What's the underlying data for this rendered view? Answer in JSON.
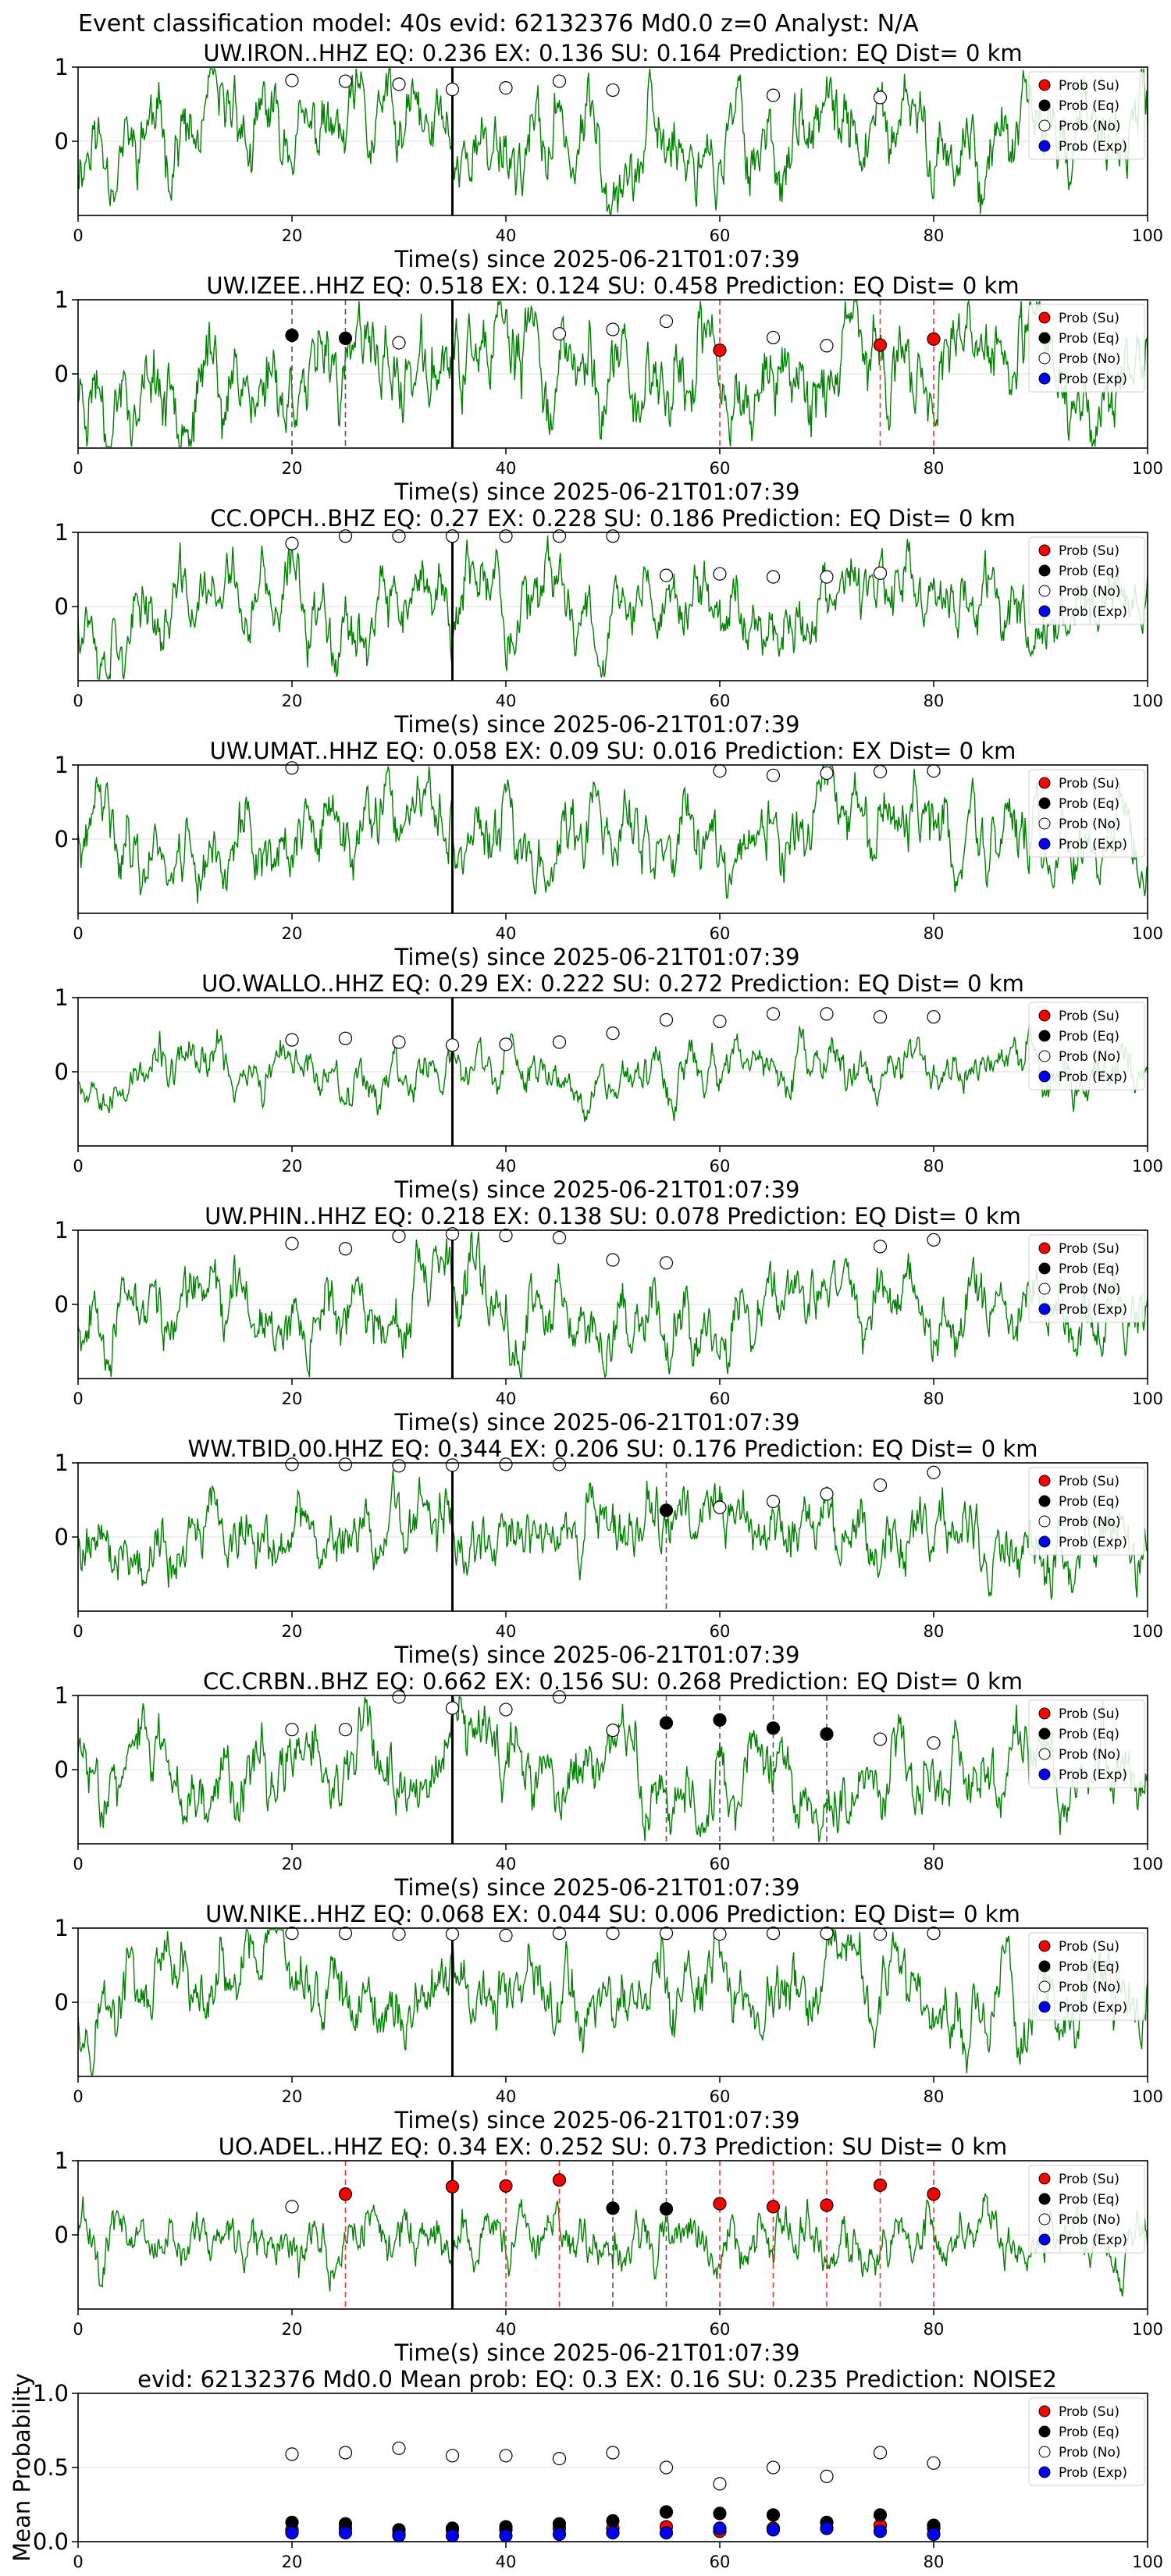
{
  "figure_title": "Event classification model: 40s evid: 62132376 Md0.0 z=0 Analyst: N/A",
  "legend_labels": [
    "Prob (Su)",
    "Prob (Eq)",
    "Prob (No)",
    "Prob (Exp)"
  ],
  "colors": {
    "su": "#ff0000",
    "eq": "#000000",
    "no": "#ffffff",
    "exp": "#0000ff",
    "trace": "#008000",
    "grid": "#dddddd"
  },
  "chart_data": [
    {
      "type": "line",
      "station": "UW.IRON..HHZ",
      "title": "UW.IRON..HHZ   EQ: 0.236  EX: 0.136  SU: 0.164   Prediction: EQ    Dist= 0 km",
      "xlabel": "Time(s) since 2025-06-21T01:07:39",
      "xlim": [
        0,
        100
      ],
      "ylim": [
        -1,
        1
      ],
      "xticks": [
        0,
        20,
        40,
        60,
        80,
        100
      ],
      "yticks": [
        0,
        1
      ],
      "ytick_labels": [
        "0",
        "1"
      ],
      "pick_time": 35,
      "waveform": {
        "seed": 11,
        "amplitude": 0.55
      },
      "dashed_lines": [],
      "probabilities": {
        "x": [
          20,
          25,
          30,
          35,
          40,
          45,
          50,
          55,
          60,
          65,
          70,
          75,
          80
        ],
        "no": [
          0.82,
          0.81,
          0.77,
          0.7,
          0.72,
          0.81,
          0.69,
          null,
          null,
          0.62,
          null,
          0.59,
          null
        ],
        "eq": [],
        "su": [],
        "exp": []
      }
    },
    {
      "type": "line",
      "station": "UW.IZEE..HHZ",
      "title": "UW.IZEE..HHZ   EQ: 0.518  EX: 0.124  SU: 0.458   Prediction: EQ    Dist= 0 km",
      "xlabel": "Time(s) since 2025-06-21T01:07:39",
      "xlim": [
        0,
        100
      ],
      "ylim": [
        -1,
        1
      ],
      "xticks": [
        0,
        20,
        40,
        60,
        80,
        100
      ],
      "yticks": [
        0,
        1
      ],
      "ytick_labels": [
        "0",
        "1"
      ],
      "pick_time": 35,
      "waveform": {
        "seed": 23,
        "amplitude": 0.6
      },
      "dashed_lines": [
        {
          "x": 20,
          "color": "#555555"
        },
        {
          "x": 25,
          "color": "#555555"
        },
        {
          "x": 60,
          "color": "#ff3030"
        },
        {
          "x": 75,
          "color": "#ff3030"
        },
        {
          "x": 80,
          "color": "#ff3030"
        }
      ],
      "probabilities": {
        "x": [
          20,
          25,
          30,
          35,
          40,
          45,
          50,
          55,
          60,
          65,
          70,
          75,
          80
        ],
        "no": [
          null,
          null,
          0.42,
          null,
          null,
          0.54,
          0.6,
          0.71,
          null,
          0.49,
          0.38,
          null,
          null
        ],
        "eq": [
          0.52,
          0.48,
          null,
          null,
          null,
          null,
          null,
          null,
          null,
          null,
          null,
          null,
          null
        ],
        "su": [
          null,
          null,
          null,
          null,
          null,
          null,
          null,
          null,
          0.32,
          null,
          null,
          0.39,
          0.47
        ],
        "exp": []
      }
    },
    {
      "type": "line",
      "station": "CC.OPCH..BHZ",
      "title": "CC.OPCH..BHZ   EQ: 0.27  EX: 0.228  SU: 0.186   Prediction: EQ    Dist= 0 km",
      "xlabel": "Time(s) since 2025-06-21T01:07:39",
      "xlim": [
        0,
        100
      ],
      "ylim": [
        -1,
        1
      ],
      "xticks": [
        0,
        20,
        40,
        60,
        80,
        100
      ],
      "yticks": [
        0,
        1
      ],
      "ytick_labels": [
        "0",
        "1"
      ],
      "pick_time": 35,
      "waveform": {
        "seed": 37,
        "amplitude": 0.5
      },
      "dashed_lines": [],
      "probabilities": {
        "x": [
          20,
          25,
          30,
          35,
          40,
          45,
          50,
          55,
          60,
          65,
          70,
          75,
          80
        ],
        "no": [
          0.85,
          0.95,
          0.95,
          0.95,
          0.95,
          0.95,
          0.95,
          0.42,
          0.44,
          0.4,
          0.4,
          0.45,
          null
        ],
        "eq": [],
        "su": [],
        "exp": []
      }
    },
    {
      "type": "line",
      "station": "UW.UMAT..HHZ",
      "title": "UW.UMAT..HHZ   EQ: 0.058  EX: 0.09  SU: 0.016   Prediction: EX    Dist= 0 km",
      "xlabel": "Time(s) since 2025-06-21T01:07:39",
      "xlim": [
        0,
        100
      ],
      "ylim": [
        -1,
        1
      ],
      "xticks": [
        0,
        20,
        40,
        60,
        80,
        100
      ],
      "yticks": [
        0,
        1
      ],
      "ytick_labels": [
        "0",
        "1"
      ],
      "pick_time": 35,
      "waveform": {
        "seed": 41,
        "amplitude": 0.5
      },
      "dashed_lines": [],
      "probabilities": {
        "x": [
          20,
          25,
          30,
          35,
          40,
          45,
          50,
          55,
          60,
          65,
          70,
          75,
          80
        ],
        "no": [
          0.96,
          null,
          null,
          null,
          null,
          null,
          null,
          null,
          0.92,
          0.86,
          0.89,
          0.91,
          0.92
        ],
        "eq": [],
        "su": [],
        "exp": []
      }
    },
    {
      "type": "line",
      "station": "UO.WALLO..HHZ",
      "title": "UO.WALLO..HHZ   EQ: 0.29  EX: 0.222  SU: 0.272   Prediction: EQ    Dist= 0 km",
      "xlabel": "Time(s) since 2025-06-21T01:07:39",
      "xlim": [
        0,
        100
      ],
      "ylim": [
        -1,
        1
      ],
      "xticks": [
        0,
        20,
        40,
        60,
        80,
        100
      ],
      "yticks": [
        0,
        1
      ],
      "ytick_labels": [
        "0",
        "1"
      ],
      "pick_time": 35,
      "waveform": {
        "seed": 53,
        "amplitude": 0.3
      },
      "dashed_lines": [],
      "probabilities": {
        "x": [
          20,
          25,
          30,
          35,
          40,
          45,
          50,
          55,
          60,
          65,
          70,
          75,
          80
        ],
        "no": [
          0.43,
          0.45,
          0.4,
          0.36,
          0.37,
          0.4,
          0.52,
          0.7,
          0.68,
          0.78,
          0.78,
          0.74,
          0.74
        ],
        "eq": [],
        "su": [],
        "exp": []
      }
    },
    {
      "type": "line",
      "station": "UW.PHIN..HHZ",
      "title": "UW.PHIN..HHZ   EQ: 0.218  EX: 0.138  SU: 0.078   Prediction: EQ    Dist= 0 km",
      "xlabel": "Time(s) since 2025-06-21T01:07:39",
      "xlim": [
        0,
        100
      ],
      "ylim": [
        -1,
        1
      ],
      "xticks": [
        0,
        20,
        40,
        60,
        80,
        100
      ],
      "yticks": [
        0,
        1
      ],
      "ytick_labels": [
        "0",
        "1"
      ],
      "pick_time": 35,
      "waveform": {
        "seed": 67,
        "amplitude": 0.45
      },
      "dashed_lines": [],
      "probabilities": {
        "x": [
          20,
          25,
          30,
          35,
          40,
          45,
          50,
          55,
          60,
          65,
          70,
          75,
          80
        ],
        "no": [
          0.82,
          0.75,
          0.92,
          0.95,
          0.93,
          0.9,
          0.6,
          0.56,
          null,
          null,
          null,
          0.78,
          0.87
        ],
        "eq": [],
        "su": [],
        "exp": []
      }
    },
    {
      "type": "line",
      "station": "WW.TBID.00.HHZ",
      "title": "WW.TBID.00.HHZ   EQ: 0.344  EX: 0.206  SU: 0.176   Prediction: EQ    Dist= 0 km",
      "xlabel": "Time(s) since 2025-06-21T01:07:39",
      "xlim": [
        0,
        100
      ],
      "ylim": [
        -1,
        1
      ],
      "xticks": [
        0,
        20,
        40,
        60,
        80,
        100
      ],
      "yticks": [
        0,
        1
      ],
      "ytick_labels": [
        "0",
        "1"
      ],
      "pick_time": 35,
      "waveform": {
        "seed": 79,
        "amplitude": 0.45
      },
      "dashed_lines": [
        {
          "x": 55,
          "color": "#555555"
        }
      ],
      "probabilities": {
        "x": [
          20,
          25,
          30,
          35,
          40,
          45,
          50,
          55,
          60,
          65,
          70,
          75,
          80
        ],
        "no": [
          0.98,
          0.98,
          0.96,
          0.97,
          0.98,
          0.98,
          null,
          null,
          0.4,
          0.48,
          0.58,
          0.7,
          0.87
        ],
        "eq": [
          null,
          null,
          null,
          null,
          null,
          null,
          null,
          0.36,
          null,
          null,
          null,
          null,
          null
        ],
        "su": [],
        "exp": []
      }
    },
    {
      "type": "line",
      "station": "CC.CRBN..BHZ",
      "title": "CC.CRBN..BHZ   EQ: 0.662  EX: 0.156  SU: 0.268   Prediction: EQ    Dist= 0 km",
      "xlabel": "Time(s) since 2025-06-21T01:07:39",
      "xlim": [
        0,
        100
      ],
      "ylim": [
        -1,
        1
      ],
      "xticks": [
        0,
        20,
        40,
        60,
        80,
        100
      ],
      "yticks": [
        0,
        1
      ],
      "ytick_labels": [
        "0",
        "1"
      ],
      "pick_time": 35,
      "waveform": {
        "seed": 83,
        "amplitude": 0.5
      },
      "dashed_lines": [
        {
          "x": 55,
          "color": "#555555"
        },
        {
          "x": 60,
          "color": "#555555"
        },
        {
          "x": 65,
          "color": "#555555"
        },
        {
          "x": 70,
          "color": "#555555"
        }
      ],
      "probabilities": {
        "x": [
          20,
          25,
          30,
          35,
          40,
          45,
          50,
          55,
          60,
          65,
          70,
          75,
          80
        ],
        "no": [
          0.54,
          0.54,
          0.98,
          0.83,
          0.81,
          0.98,
          0.53,
          null,
          null,
          null,
          null,
          0.41,
          0.36
        ],
        "eq": [
          null,
          null,
          null,
          null,
          null,
          null,
          null,
          0.63,
          0.67,
          0.56,
          0.48,
          null,
          null
        ],
        "su": [],
        "exp": []
      }
    },
    {
      "type": "line",
      "station": "UW.NIKE..HHZ",
      "title": "UW.NIKE..HHZ   EQ: 0.068  EX: 0.044  SU: 0.006   Prediction: EQ    Dist= 0 km",
      "xlabel": "Time(s) since 2025-06-21T01:07:39",
      "xlim": [
        0,
        100
      ],
      "ylim": [
        -1,
        1
      ],
      "xticks": [
        0,
        20,
        40,
        60,
        80,
        100
      ],
      "yticks": [
        0,
        1
      ],
      "ytick_labels": [
        "0",
        "1"
      ],
      "pick_time": 35,
      "waveform": {
        "seed": 97,
        "amplitude": 0.5
      },
      "dashed_lines": [],
      "probabilities": {
        "x": [
          20,
          25,
          30,
          35,
          40,
          45,
          50,
          55,
          60,
          65,
          70,
          75,
          80
        ],
        "no": [
          0.93,
          0.93,
          0.92,
          0.92,
          0.9,
          0.93,
          0.93,
          0.93,
          0.92,
          0.93,
          0.93,
          0.92,
          0.93
        ],
        "eq": [],
        "su": [],
        "exp": []
      }
    },
    {
      "type": "line",
      "station": "UO.ADEL..HHZ",
      "title": "UO.ADEL..HHZ   EQ: 0.34  EX: 0.252  SU: 0.73   Prediction: SU    Dist= 0 km",
      "xlabel": "Time(s) since 2025-06-21T01:07:39",
      "xlim": [
        0,
        100
      ],
      "ylim": [
        -1,
        1
      ],
      "xticks": [
        0,
        20,
        40,
        60,
        80,
        100
      ],
      "yticks": [
        0,
        1
      ],
      "ytick_labels": [
        "0",
        "1"
      ],
      "pick_time": 35,
      "waveform": {
        "seed": 101,
        "amplitude": 0.35
      },
      "dashed_lines": [
        {
          "x": 25,
          "color": "#ff3030"
        },
        {
          "x": 40,
          "color": "#ff3030"
        },
        {
          "x": 45,
          "color": "#ff3030"
        },
        {
          "x": 50,
          "color": "#555555"
        },
        {
          "x": 55,
          "color": "#555555"
        },
        {
          "x": 60,
          "color": "#ff3030"
        },
        {
          "x": 65,
          "color": "#ff3030"
        },
        {
          "x": 70,
          "color": "#ff3030"
        },
        {
          "x": 75,
          "color": "#ff3030"
        },
        {
          "x": 80,
          "color": "#ff3030"
        }
      ],
      "probabilities": {
        "x": [
          20,
          25,
          30,
          35,
          40,
          45,
          50,
          55,
          60,
          65,
          70,
          75,
          80
        ],
        "no": [
          0.38,
          null,
          null,
          null,
          null,
          null,
          null,
          null,
          null,
          null,
          null,
          null,
          null
        ],
        "eq": [
          null,
          null,
          null,
          null,
          null,
          null,
          0.36,
          0.35,
          null,
          null,
          null,
          null,
          null
        ],
        "su": [
          null,
          0.55,
          null,
          0.65,
          0.66,
          0.74,
          null,
          null,
          0.42,
          0.38,
          0.4,
          0.67,
          0.55
        ],
        "exp": []
      }
    },
    {
      "type": "scatter",
      "title": "evid: 62132376   Md0.0   Mean prob:    EQ: 0.3  EX: 0.16  SU: 0.235   Prediction: NOISE2",
      "ylabel": "Mean Probability",
      "xlim": [
        0,
        100
      ],
      "ylim": [
        0,
        1
      ],
      "xticks": [
        0,
        20,
        40,
        60,
        80,
        100
      ],
      "yticks": [
        0,
        0.5,
        1.0
      ],
      "ytick_labels": [
        "0.0",
        "0.5",
        "1.0"
      ],
      "grid": true,
      "x": [
        20,
        25,
        30,
        35,
        40,
        45,
        50,
        55,
        60,
        65,
        70,
        75,
        80
      ],
      "series": [
        {
          "name": "Prob (Su)",
          "values": [
            0.08,
            0.09,
            0.05,
            0.08,
            0.08,
            0.09,
            0.09,
            0.1,
            0.07,
            0.09,
            0.09,
            0.11,
            0.09
          ]
        },
        {
          "name": "Prob (Eq)",
          "values": [
            0.13,
            0.12,
            0.08,
            0.09,
            0.1,
            0.12,
            0.14,
            0.2,
            0.19,
            0.18,
            0.13,
            0.18,
            0.11
          ]
        },
        {
          "name": "Prob (No)",
          "values": [
            0.59,
            0.6,
            0.63,
            0.58,
            0.58,
            0.56,
            0.6,
            0.5,
            0.39,
            0.5,
            0.44,
            0.6,
            0.53
          ]
        },
        {
          "name": "Prob (Exp)",
          "values": [
            0.06,
            0.06,
            0.04,
            0.04,
            0.04,
            0.05,
            0.06,
            0.06,
            0.09,
            0.08,
            0.09,
            0.07,
            0.05
          ]
        }
      ]
    }
  ]
}
